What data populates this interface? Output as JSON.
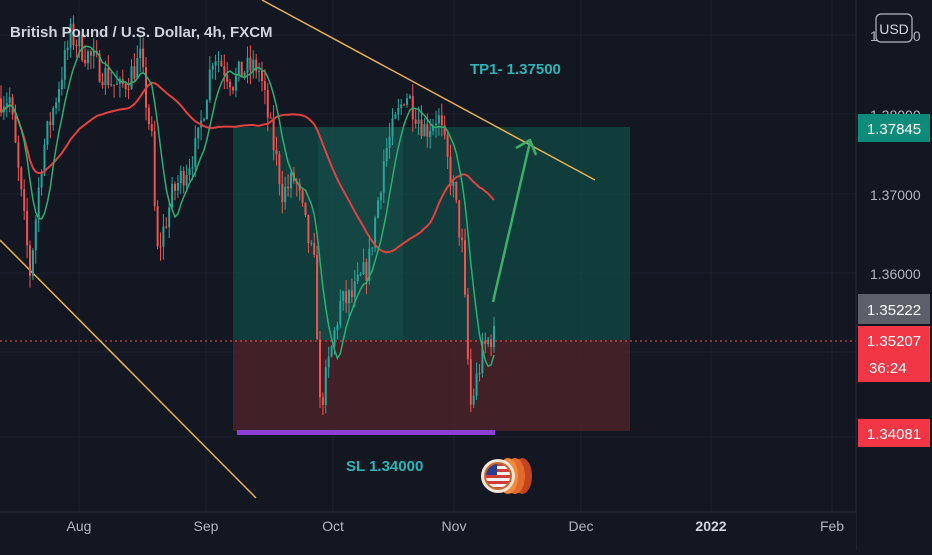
{
  "symbol_title": "British Pound / U.S. Dollar, 4h, FXCM",
  "currency_button": "USD",
  "colors": {
    "background": "#131722",
    "grid": "#1e222d",
    "up_candle": "#26a69a",
    "down_candle": "#ef5350",
    "ma_slow": "#e14141",
    "ma_fast": "#2fae72",
    "trendline": "#e8b04a",
    "target_zone": "#124a45",
    "stop_zone": "#4a2328",
    "projection_arrow": "#3fae6b",
    "sl_bar": "#8b3fd6",
    "label_text": "#2cb5b5",
    "axis_text": "#b2b5be"
  },
  "annotations": {
    "tp_label": "TP1- 1.37500",
    "sl_label": "SL 1.34000",
    "flag_icon": "us-flag-coin-stack-icon"
  },
  "price_tags": {
    "target": "1.37845",
    "last_close": "1.35222",
    "current": "1.35207",
    "countdown": "36:24",
    "stop": "1.34081"
  },
  "chart_data": {
    "type": "candlestick",
    "title": "British Pound / U.S. Dollar, 4h, FXCM",
    "y_axis": {
      "ticks": [
        "1.36000",
        "1.37000",
        "1.38000",
        "1.39000"
      ],
      "tick_values": [
        1.36,
        1.37,
        1.38,
        1.39
      ],
      "range": [
        1.333,
        1.39
      ]
    },
    "x_axis": {
      "ticks": [
        "Aug",
        "Sep",
        "Oct",
        "Nov",
        "Dec",
        "2022",
        "Feb"
      ]
    },
    "trade_setup": {
      "entry": 1.352,
      "target": 1.37845,
      "stop": 1.34081,
      "tp1": 1.375,
      "sl": 1.34
    },
    "price_path": [
      [
        "Jul 15",
        1.382
      ],
      [
        "Jul 20",
        1.36
      ],
      [
        "Jul 23",
        1.375
      ],
      [
        "Jul 30",
        1.39
      ],
      [
        "Aug 4",
        1.387
      ],
      [
        "Aug 11",
        1.383
      ],
      [
        "Aug 16",
        1.387
      ],
      [
        "Aug 19",
        1.376
      ],
      [
        "Aug 20",
        1.362
      ],
      [
        "Aug 24",
        1.37
      ],
      [
        "Aug 30",
        1.376
      ],
      [
        "Sep 3",
        1.388
      ],
      [
        "Sep 8",
        1.384
      ],
      [
        "Sep 10",
        1.3855
      ],
      [
        "Sep 14",
        1.386
      ],
      [
        "Sep 17",
        1.378
      ],
      [
        "Sep 20",
        1.37
      ],
      [
        "Sep 23",
        1.372
      ],
      [
        "Sep 28",
        1.36
      ],
      [
        "Sep 29",
        1.343
      ],
      [
        "Sep 30",
        1.345
      ],
      [
        "Oct 4",
        1.356
      ],
      [
        "Oct 7",
        1.357
      ],
      [
        "Oct 11",
        1.361
      ],
      [
        "Oct 15",
        1.375
      ],
      [
        "Oct 19",
        1.381
      ],
      [
        "Oct 20",
        1.383
      ],
      [
        "Oct 25",
        1.378
      ],
      [
        "Oct 28",
        1.38
      ],
      [
        "Nov 1",
        1.37
      ],
      [
        "Nov 3",
        1.363
      ],
      [
        "Nov 5",
        1.343
      ],
      [
        "Nov 8",
        1.35
      ],
      [
        "Nov 10",
        1.352
      ]
    ]
  }
}
